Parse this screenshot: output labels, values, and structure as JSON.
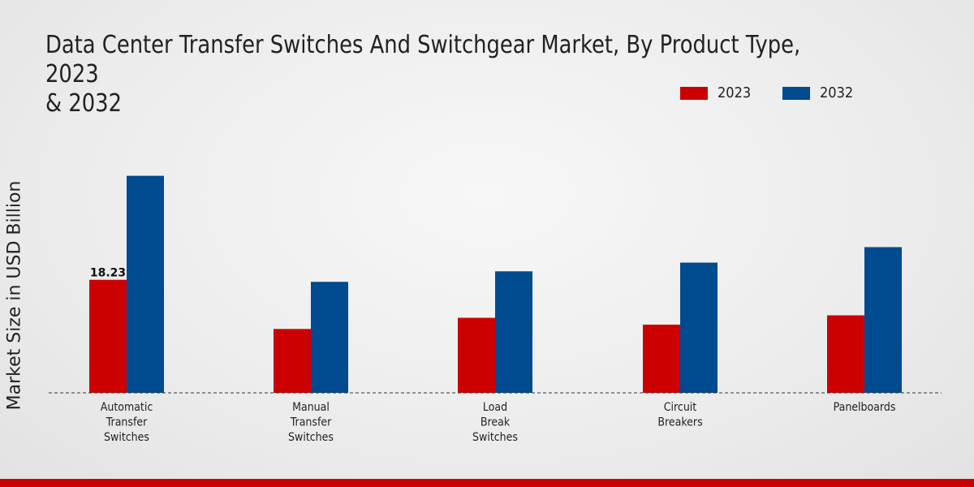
{
  "colors": {
    "series_2023": "#cc0000",
    "series_2032": "#004a8f",
    "footer": "#cc0000"
  },
  "chart_data": {
    "type": "bar",
    "title": "Data Center Transfer Switches And Switchgear Market, By Product Type, 2023\n& 2032",
    "ylabel": "Market Size in USD Billion",
    "xlabel": "",
    "categories": [
      "Automatic\nTransfer\nSwitches",
      "Manual\nTransfer\nSwitches",
      "Load\nBreak\nSwitches",
      "Circuit\nBreakers",
      "Panelboards"
    ],
    "series": [
      {
        "name": "2023",
        "values": [
          18.23,
          10.3,
          12.1,
          11.0,
          12.5
        ]
      },
      {
        "name": "2032",
        "values": [
          35.0,
          17.9,
          19.6,
          21.0,
          23.5
        ]
      }
    ],
    "data_labels": [
      {
        "series": 0,
        "index": 0,
        "text": "18.23"
      }
    ],
    "ylim": [
      0,
      50
    ],
    "legend_position": "top-right"
  }
}
